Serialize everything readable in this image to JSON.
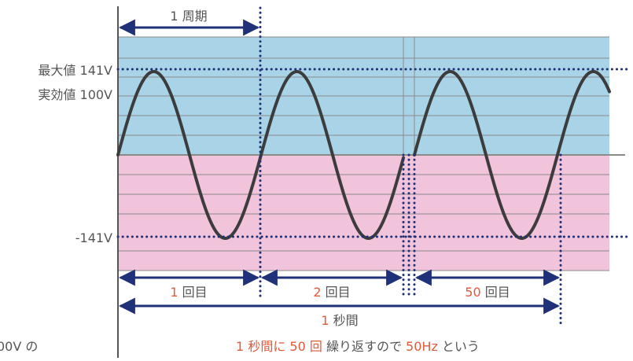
{
  "diagram": {
    "period_label": "1 周期",
    "voltage_labels": {
      "max": "最大値 141V",
      "effective": "実効値 100V",
      "min": "-141V"
    },
    "cycles": [
      {
        "number": "1",
        "suffix": " 回目"
      },
      {
        "number": "2",
        "suffix": " 回目"
      },
      {
        "number": "50",
        "suffix": " 回目"
      }
    ],
    "one_second": {
      "number": "1",
      "suffix": " 秒間"
    },
    "caption": {
      "part1": "1 秒間に 50 回",
      "part2": " 繰り返すので ",
      "part3": "50Hz",
      "part4": " という"
    },
    "clipped_left_text": "00V の",
    "colors": {
      "positive_band": "#a9d4e8",
      "negative_band": "#f2c4dc",
      "wave": "#3c3c3c",
      "navy": "#1f3178",
      "accent": "#e0593a",
      "label": "#555555"
    }
  }
}
